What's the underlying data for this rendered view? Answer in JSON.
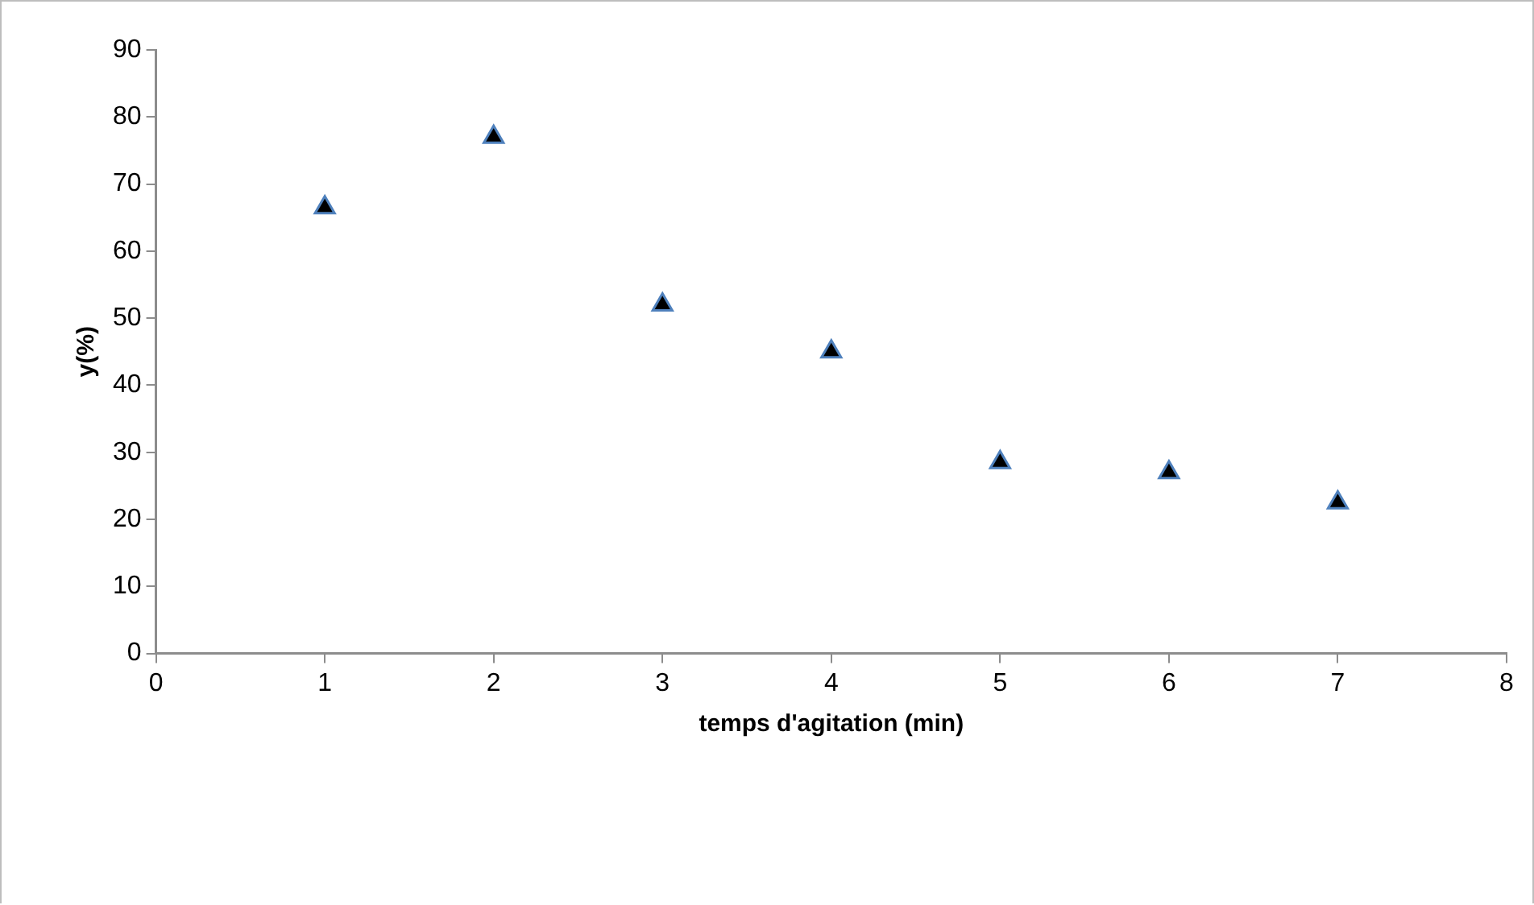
{
  "chart_data": {
    "type": "scatter",
    "xlabel": "temps d'agitation (min)",
    "ylabel": "y(%)",
    "x": [
      1,
      2,
      3,
      4,
      5,
      6,
      7
    ],
    "series": [
      {
        "color": "#000000",
        "values": [
          66.5,
          77,
          52,
          45,
          28.5,
          27,
          22.5
        ]
      }
    ],
    "xlim": [
      0,
      8
    ],
    "xticks": [
      0,
      1,
      2,
      3,
      4,
      5,
      6,
      7,
      8
    ],
    "ylim": [
      0,
      90
    ],
    "yticks": [
      0,
      10,
      20,
      30,
      40,
      50,
      60,
      70,
      80,
      90
    ],
    "grid": false,
    "legend": false,
    "marker": "triangle"
  }
}
